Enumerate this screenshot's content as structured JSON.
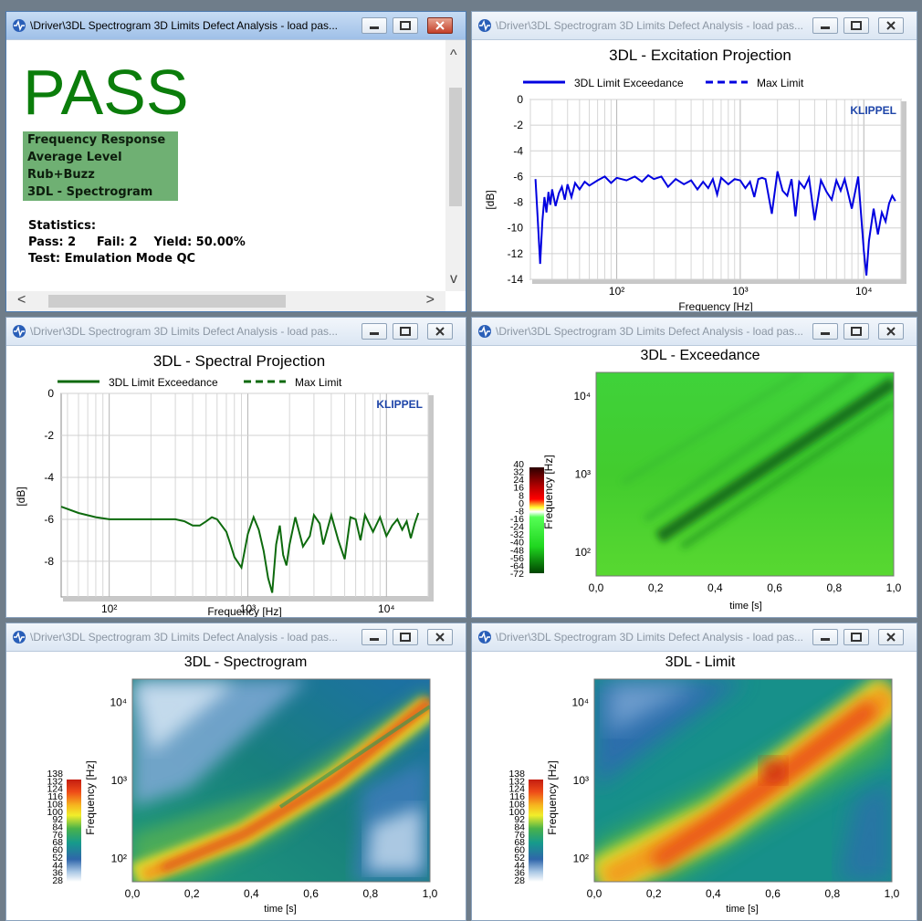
{
  "window_title": "\\Driver\\3DL Spectrogram 3D Limits Defect Analysis - load pas...",
  "pass_window": {
    "result": "PASS",
    "criteria": [
      "Frequency Response",
      "Average Level",
      "Rub+Buzz",
      "3DL - Spectrogram"
    ],
    "stats_heading": "Statistics:",
    "stats_line1": "Pass: 2     Fail: 2    Yield: 50.00%",
    "stats_line2": "Test: Emulation Mode QC"
  },
  "colors": {
    "blue": "#0000e0",
    "green": "#0d6a0d",
    "pass": "#0b7d0b",
    "klippel": "#1d44a8"
  },
  "icons": [
    "app-icon",
    "minimize-icon",
    "maximize-icon",
    "close-icon"
  ],
  "excitation": {
    "title": "3DL - Excitation Projection",
    "legend": [
      "3DL Limit Exceedance",
      "Max Limit"
    ],
    "brand": "KLIPPEL",
    "ylabel": "[dB]",
    "xlabel": "Frequency  [Hz]",
    "yticks": [
      "0",
      "-2",
      "-4",
      "-6",
      "-8",
      "-10",
      "-12",
      "-14"
    ],
    "xticks": [
      "10²",
      "10³",
      "10⁴"
    ]
  },
  "spectral": {
    "title": "3DL - Spectral Projection",
    "legend": [
      "3DL Limit Exceedance",
      "Max Limit"
    ],
    "brand": "KLIPPEL",
    "ylabel": "[dB]",
    "xlabel": "Frequency  [Hz]",
    "yticks": [
      "0",
      "-2",
      "-4",
      "-6",
      "-8"
    ],
    "xticks": [
      "10²",
      "10³",
      "10⁴"
    ]
  },
  "exceedance": {
    "title": "3DL - Exceedance",
    "ylabel": "Frequency  [Hz]",
    "xlabel": "time [s]",
    "yticks": [
      "10⁴",
      "10³",
      "10²"
    ],
    "xticks": [
      "0,0",
      "0,2",
      "0,4",
      "0,6",
      "0,8",
      "1,0"
    ],
    "colorbar": [
      "40",
      "32",
      "24",
      "16",
      "8",
      "0",
      "-8",
      "-16",
      "-24",
      "-32",
      "-40",
      "-48",
      "-56",
      "-64",
      "-72"
    ]
  },
  "spectrogram": {
    "title": "3DL - Spectrogram",
    "ylabel": "Frequency  [Hz]",
    "xlabel": "time [s]",
    "yticks": [
      "10⁴",
      "10³",
      "10²"
    ],
    "xticks": [
      "0,0",
      "0,2",
      "0,4",
      "0,6",
      "0,8",
      "1,0"
    ],
    "colorbar": [
      "138",
      "132",
      "124",
      "116",
      "108",
      "100",
      "92",
      "84",
      "76",
      "68",
      "60",
      "52",
      "44",
      "36",
      "28"
    ]
  },
  "limit": {
    "title": "3DL - Limit",
    "ylabel": "Frequency  [Hz]",
    "xlabel": "time [s]",
    "yticks": [
      "10⁴",
      "10³",
      "10²"
    ],
    "xticks": [
      "0,0",
      "0,2",
      "0,4",
      "0,6",
      "0,8",
      "1,0"
    ],
    "colorbar": [
      "138",
      "132",
      "124",
      "116",
      "108",
      "100",
      "92",
      "84",
      "76",
      "68",
      "60",
      "52",
      "44",
      "36",
      "28"
    ]
  },
  "chart_data": [
    {
      "type": "line",
      "title": "3DL - Excitation Projection",
      "xlabel": "Frequency  [Hz]",
      "ylabel": "[dB]",
      "xscale": "log",
      "xlim": [
        20,
        20000
      ],
      "ylim": [
        -14,
        0
      ],
      "legend": "top",
      "series": [
        {
          "name": "3DL Limit Exceedance",
          "x": [
            22,
            23,
            24,
            25,
            26,
            27,
            28,
            29,
            30,
            32,
            34,
            36,
            38,
            40,
            43,
            46,
            50,
            55,
            60,
            70,
            80,
            90,
            100,
            120,
            140,
            160,
            180,
            200,
            230,
            260,
            300,
            350,
            400,
            450,
            500,
            550,
            600,
            650,
            700,
            800,
            900,
            1000,
            1100,
            1200,
            1300,
            1400,
            1500,
            1600,
            1800,
            2000,
            2200,
            2400,
            2600,
            2800,
            3000,
            3300,
            3600,
            4000,
            4500,
            5000,
            5500,
            6000,
            6500,
            7000,
            8000,
            9000,
            10000,
            10500,
            11000,
            12000,
            13000,
            14000,
            15000,
            16000,
            17000,
            18000
          ],
          "y": [
            -6.2,
            -9.5,
            -12.8,
            -9.5,
            -7.6,
            -8.8,
            -7.2,
            -8.2,
            -7.0,
            -8.3,
            -7.3,
            -6.8,
            -7.8,
            -6.6,
            -7.6,
            -6.5,
            -7.0,
            -6.4,
            -6.7,
            -6.3,
            -6.0,
            -6.5,
            -6.1,
            -6.3,
            -6.0,
            -6.4,
            -5.9,
            -6.2,
            -6.0,
            -6.8,
            -6.2,
            -6.6,
            -6.3,
            -7.0,
            -6.4,
            -6.9,
            -6.2,
            -7.4,
            -6.1,
            -6.6,
            -6.2,
            -6.3,
            -6.9,
            -6.4,
            -7.6,
            -6.2,
            -6.1,
            -6.2,
            -8.9,
            -5.6,
            -7.1,
            -7.5,
            -6.2,
            -9.1,
            -6.4,
            -6.9,
            -6.1,
            -9.4,
            -6.3,
            -7.2,
            -7.8,
            -6.3,
            -7.1,
            -6.2,
            -8.5,
            -6.0,
            -11.8,
            -13.7,
            -11.0,
            -8.5,
            -10.5,
            -8.8,
            -9.5,
            -8.1,
            -7.5,
            -7.9
          ]
        },
        {
          "name": "Max Limit",
          "x": [],
          "y": []
        }
      ]
    },
    {
      "type": "line",
      "title": "3DL - Spectral Projection",
      "xlabel": "Frequency  [Hz]",
      "ylabel": "[dB]",
      "xscale": "log",
      "xlim": [
        45,
        20000
      ],
      "ylim": [
        -9.7,
        0
      ],
      "legend": "top",
      "series": [
        {
          "name": "3DL Limit Exceedance",
          "x": [
            45,
            60,
            80,
            100,
            150,
            200,
            250,
            300,
            350,
            400,
            450,
            500,
            550,
            600,
            700,
            750,
            800,
            900,
            1000,
            1100,
            1200,
            1300,
            1400,
            1500,
            1600,
            1700,
            1800,
            1900,
            2000,
            2200,
            2500,
            2800,
            3000,
            3300,
            3500,
            4000,
            4500,
            5000,
            5500,
            6000,
            6500,
            7000,
            8000,
            9000,
            10000,
            11000,
            12000,
            13000,
            14000,
            15000,
            16000,
            17000
          ],
          "y": [
            -5.4,
            -5.7,
            -5.9,
            -6.0,
            -6.0,
            -6.0,
            -6.0,
            -6.0,
            -6.1,
            -6.3,
            -6.3,
            -6.1,
            -5.9,
            -6.0,
            -6.6,
            -7.2,
            -7.8,
            -8.3,
            -6.7,
            -5.9,
            -6.5,
            -7.5,
            -8.8,
            -9.5,
            -7.2,
            -6.3,
            -7.7,
            -8.2,
            -7.2,
            -5.9,
            -7.3,
            -6.8,
            -5.8,
            -6.2,
            -7.2,
            -5.8,
            -7.0,
            -7.9,
            -5.9,
            -6.0,
            -7.0,
            -5.8,
            -6.6,
            -5.9,
            -6.8,
            -6.3,
            -6.0,
            -6.5,
            -6.1,
            -6.9,
            -6.2,
            -5.7
          ]
        },
        {
          "name": "Max Limit",
          "x": [],
          "y": []
        }
      ]
    },
    {
      "type": "heatmap",
      "title": "3DL - Exceedance",
      "xlabel": "time [s]",
      "ylabel": "Frequency  [Hz]",
      "xlim": [
        0,
        1
      ],
      "ylim": [
        50,
        20000
      ],
      "yscale": "log",
      "colorbar": {
        "min": -72,
        "max": 40,
        "ticks": [
          40,
          32,
          24,
          16,
          8,
          0,
          -8,
          -16,
          -24,
          -32,
          -40,
          -48,
          -56,
          -64,
          -72
        ]
      }
    },
    {
      "type": "heatmap",
      "title": "3DL - Spectrogram",
      "xlabel": "time [s]",
      "ylabel": "Frequency  [Hz]",
      "xlim": [
        0,
        1
      ],
      "ylim": [
        50,
        20000
      ],
      "yscale": "log",
      "colorbar": {
        "min": 28,
        "max": 138,
        "ticks": [
          138,
          132,
          124,
          116,
          108,
          100,
          92,
          84,
          76,
          68,
          60,
          52,
          44,
          36,
          28
        ]
      }
    },
    {
      "type": "heatmap",
      "title": "3DL - Limit",
      "xlabel": "time [s]",
      "ylabel": "Frequency  [Hz]",
      "xlim": [
        0,
        1
      ],
      "ylim": [
        50,
        20000
      ],
      "yscale": "log",
      "colorbar": {
        "min": 28,
        "max": 138,
        "ticks": [
          138,
          132,
          124,
          116,
          108,
          100,
          92,
          84,
          76,
          68,
          60,
          52,
          44,
          36,
          28
        ]
      }
    }
  ]
}
